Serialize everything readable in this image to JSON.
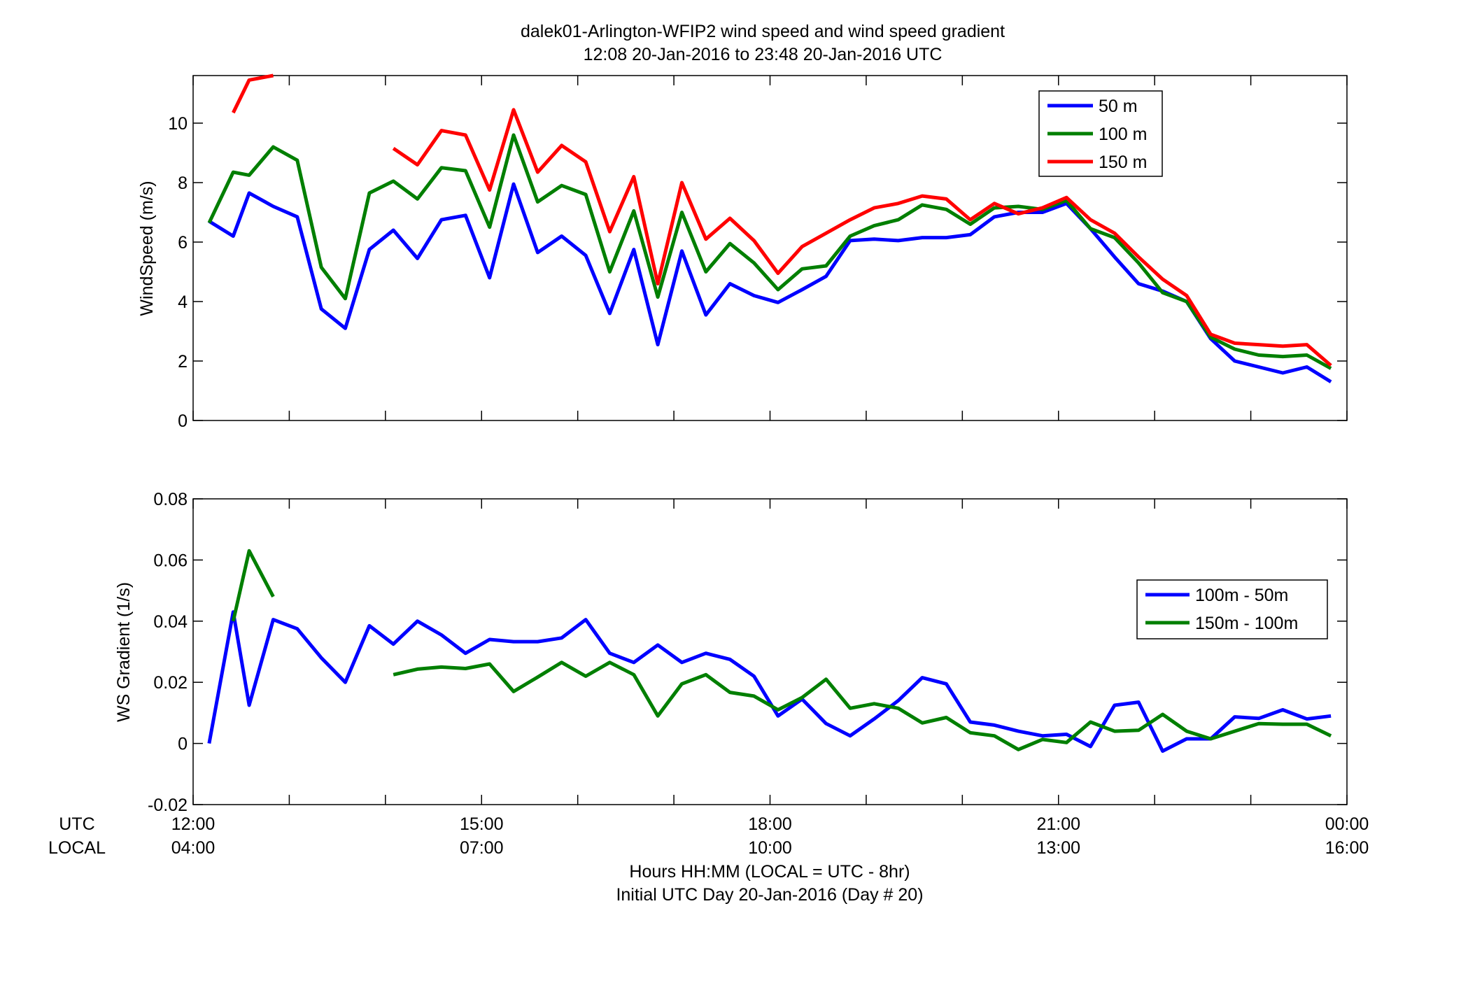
{
  "figure": {
    "title_line1": "dalek01-Arlington-WFIP2  wind speed and wind speed gradient",
    "title_line2": "12:08 20-Jan-2016 to 23:48 20-Jan-2016  UTC",
    "row_label_utc": "UTC",
    "row_label_local": "LOCAL",
    "xlabel_line1": "Hours HH:MM  (LOCAL = UTC - 8hr)",
    "xlabel_line2": "Initial UTC Day 20-Jan-2016 (Day # 20)",
    "x_ticks_utc": [
      "12:00",
      "15:00",
      "18:00",
      "21:00",
      "00:00"
    ],
    "x_ticks_local": [
      "04:00",
      "07:00",
      "10:00",
      "13:00",
      "16:00"
    ]
  },
  "chart_data": [
    {
      "type": "line",
      "title": "",
      "ylabel": "WindSpeed (m/s)",
      "xlabel": "",
      "xlim": [
        12,
        24
      ],
      "ylim": [
        0,
        11.6
      ],
      "yticks": [
        0,
        2,
        4,
        6,
        8,
        10
      ],
      "ytick_labels": [
        "0",
        "2",
        "4",
        "6",
        "8",
        "10"
      ],
      "legend_position": "top-right",
      "grid": false,
      "x": [
        12.167,
        12.417,
        12.583,
        12.833,
        13.083,
        13.333,
        13.583,
        13.833,
        14.083,
        14.333,
        14.583,
        14.833,
        15.083,
        15.333,
        15.583,
        15.833,
        16.083,
        16.333,
        16.583,
        16.833,
        17.083,
        17.333,
        17.583,
        17.833,
        18.083,
        18.333,
        18.583,
        18.833,
        19.083,
        19.333,
        19.583,
        19.833,
        20.083,
        20.333,
        20.583,
        20.833,
        21.083,
        21.333,
        21.583,
        21.833,
        22.083,
        22.333,
        22.583,
        22.833,
        23.083,
        23.333,
        23.583,
        23.833
      ],
      "series": [
        {
          "name": "50 m",
          "color": "#0000ff",
          "values": [
            6.7,
            6.2,
            7.65,
            7.2,
            6.85,
            3.75,
            3.1,
            5.75,
            6.4,
            5.45,
            6.75,
            6.9,
            4.8,
            7.95,
            5.65,
            6.2,
            5.55,
            3.6,
            5.75,
            2.55,
            5.7,
            3.55,
            4.6,
            4.2,
            3.97,
            4.4,
            4.85,
            6.05,
            6.1,
            6.05,
            6.15,
            6.15,
            6.25,
            6.85,
            7.0,
            7.0,
            7.3,
            6.45,
            5.5,
            4.6,
            4.35,
            4.0,
            2.75,
            2.0,
            1.8,
            1.6,
            1.8,
            1.3
          ]
        },
        {
          "name": "100 m",
          "color": "#007f00",
          "values": [
            6.65,
            8.35,
            8.25,
            9.2,
            8.75,
            5.15,
            4.1,
            7.65,
            8.05,
            7.45,
            8.5,
            8.4,
            6.5,
            9.6,
            7.35,
            7.9,
            7.6,
            5.0,
            7.05,
            4.15,
            7.0,
            5.0,
            5.95,
            5.3,
            4.4,
            5.1,
            5.2,
            6.2,
            6.55,
            6.75,
            7.25,
            7.1,
            6.6,
            7.15,
            7.2,
            7.1,
            7.4,
            6.45,
            6.15,
            5.3,
            4.3,
            4.0,
            2.8,
            2.4,
            2.2,
            2.15,
            2.2,
            1.75
          ]
        },
        {
          "name": "150 m",
          "color": "#ff0000",
          "values": [
            null,
            10.35,
            11.45,
            11.6,
            null,
            null,
            null,
            null,
            9.15,
            8.6,
            9.75,
            9.6,
            7.75,
            10.45,
            8.35,
            9.25,
            8.7,
            6.35,
            8.2,
            4.6,
            8.0,
            6.1,
            6.8,
            6.05,
            4.95,
            5.85,
            6.3,
            6.75,
            7.15,
            7.3,
            7.55,
            7.45,
            6.75,
            7.3,
            6.95,
            7.15,
            7.5,
            6.75,
            6.3,
            5.5,
            4.75,
            4.2,
            2.9,
            2.6,
            2.55,
            2.5,
            2.55,
            1.85
          ]
        }
      ]
    },
    {
      "type": "line",
      "title": "",
      "ylabel": "WS Gradient (1/s)",
      "xlabel": "",
      "xlim": [
        12,
        24
      ],
      "ylim": [
        -0.02,
        0.08
      ],
      "yticks": [
        -0.02,
        0,
        0.02,
        0.04,
        0.06,
        0.08
      ],
      "ytick_labels": [
        "-0.02",
        "0",
        "0.02",
        "0.04",
        "0.06",
        "0.08"
      ],
      "legend_position": "center-right",
      "grid": false,
      "x": [
        12.167,
        12.417,
        12.583,
        12.833,
        13.083,
        13.333,
        13.583,
        13.833,
        14.083,
        14.333,
        14.583,
        14.833,
        15.083,
        15.333,
        15.583,
        15.833,
        16.083,
        16.333,
        16.583,
        16.833,
        17.083,
        17.333,
        17.583,
        17.833,
        18.083,
        18.333,
        18.583,
        18.833,
        19.083,
        19.333,
        19.583,
        19.833,
        20.083,
        20.333,
        20.583,
        20.833,
        21.083,
        21.333,
        21.583,
        21.833,
        22.083,
        22.333,
        22.583,
        22.833,
        23.083,
        23.333,
        23.583,
        23.833
      ],
      "series": [
        {
          "name": "100m - 50m",
          "color": "#0000ff",
          "values": [
            0.0,
            0.043,
            0.0125,
            0.0405,
            0.0375,
            0.028,
            0.02,
            0.0385,
            0.0325,
            0.04,
            0.0355,
            0.0295,
            0.034,
            0.0333,
            0.0333,
            0.0345,
            0.0405,
            0.0295,
            0.0265,
            0.0322,
            0.0265,
            0.0295,
            0.0275,
            0.022,
            0.009,
            0.0145,
            0.0065,
            0.0025,
            0.008,
            0.014,
            0.0215,
            0.0195,
            0.007,
            0.006,
            0.004,
            0.0025,
            0.003,
            -0.001,
            0.0125,
            0.0135,
            -0.0025,
            0.0015,
            0.0015,
            0.0087,
            0.0082,
            0.011,
            0.008,
            0.009
          ]
        },
        {
          "name": "150m - 100m",
          "color": "#007f00",
          "values": [
            null,
            0.04,
            0.063,
            0.048,
            null,
            null,
            null,
            null,
            0.0225,
            0.0243,
            0.025,
            0.0245,
            0.026,
            0.017,
            0.0217,
            0.0265,
            0.022,
            0.0265,
            0.0225,
            0.009,
            0.0195,
            0.0225,
            0.0167,
            0.0155,
            0.011,
            0.015,
            0.021,
            0.0115,
            0.013,
            0.0115,
            0.0067,
            0.0085,
            0.0035,
            0.0025,
            -0.002,
            0.0013,
            0.0003,
            0.007,
            0.004,
            0.0043,
            0.0095,
            0.004,
            0.0015,
            0.004,
            0.0065,
            0.0063,
            0.0063,
            0.0025
          ]
        }
      ]
    }
  ]
}
